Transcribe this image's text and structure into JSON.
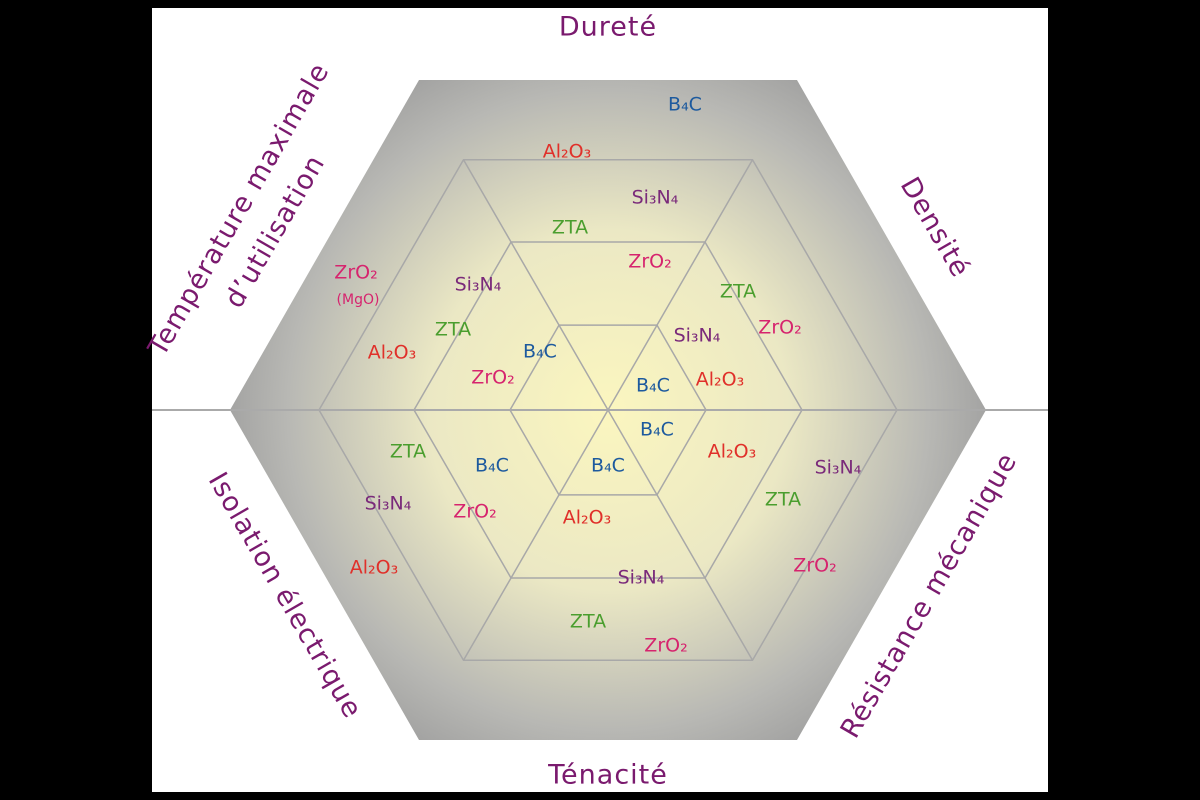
{
  "axes": {
    "top": "Dureté",
    "top_right": "Densité",
    "bottom_right": "Résistance mécanique",
    "bottom": "Ténacité",
    "bottom_left": "Isolation électrique",
    "top_left": [
      "Température maximale",
      "d’utilisation"
    ]
  },
  "sectors": {
    "top": [
      "B₄C",
      "Al₂O₃",
      "Si₃N₄",
      "ZTA",
      "ZrO₂"
    ],
    "top_right": [
      "ZTA",
      "ZrO₂",
      "Si₃N₄",
      "Al₂O₃",
      "B₄C"
    ],
    "bottom_right": [
      "B₄C",
      "Al₂O₃",
      "Si₃N₄",
      "ZTA",
      "ZrO₂"
    ],
    "bottom": [
      "B₄C",
      "Al₂O₃",
      "Si₃N₄",
      "ZTA",
      "ZrO₂"
    ],
    "bottom_left": [
      "ZTA",
      "B₄C",
      "Si₃N₄",
      "ZrO₂",
      "Al₂O₃"
    ],
    "top_left": [
      "ZrO₂",
      "(MgO)",
      "Si₃N₄",
      "ZTA",
      "Al₂O₃",
      "B₄C",
      "ZrO₂"
    ]
  }
}
